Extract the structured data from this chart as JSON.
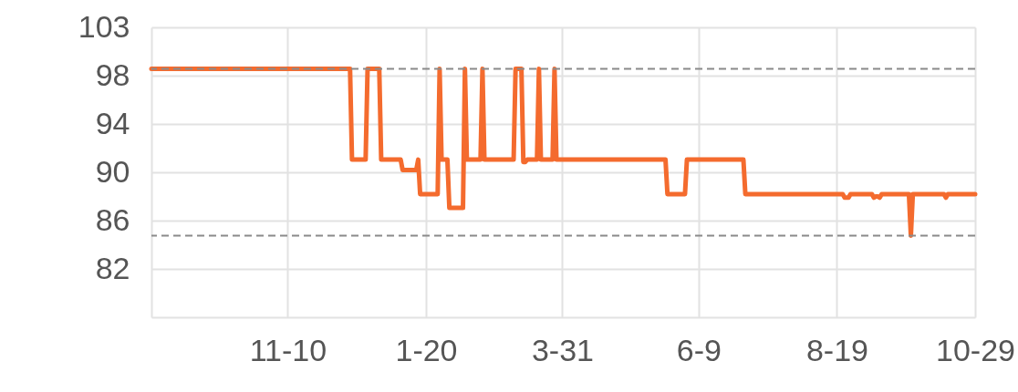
{
  "chart_data": {
    "type": "line",
    "categories": [
      null,
      null,
      null,
      null,
      null,
      null,
      null,
      null,
      null,
      null,
      null,
      null,
      null,
      null,
      null,
      null,
      null,
      null,
      null,
      null,
      null,
      null,
      null,
      null,
      null,
      null,
      null,
      null,
      null,
      null,
      null,
      null,
      null,
      null,
      null,
      null,
      null,
      null,
      null,
      null,
      null,
      null,
      null,
      null,
      null,
      null,
      null,
      null,
      null,
      null,
      null,
      null,
      null,
      null,
      null,
      null,
      null,
      null,
      null,
      null,
      null,
      null,
      null,
      null,
      null,
      null,
      null,
      null,
      null,
      null,
      "11-10",
      null,
      null,
      null,
      null,
      null,
      null,
      null,
      null,
      null,
      null,
      null,
      null,
      null,
      null,
      null,
      null,
      null,
      null,
      null,
      null,
      null,
      null,
      null,
      null,
      null,
      null,
      null,
      null,
      null,
      null,
      null,
      null,
      null,
      null,
      null,
      null,
      null,
      null,
      null,
      null,
      null,
      null,
      null,
      null,
      null,
      null,
      null,
      null,
      null,
      null,
      null,
      null,
      null,
      null,
      null,
      null,
      null,
      null,
      null,
      null,
      null,
      null,
      null,
      null,
      null,
      null,
      null,
      null,
      null,
      null,
      "1-20",
      null,
      null,
      null,
      null,
      null,
      null,
      null,
      null,
      null,
      null,
      null,
      null,
      null,
      null,
      null,
      null,
      null,
      null,
      null,
      null,
      null,
      null,
      null,
      null,
      null,
      null,
      null,
      null,
      null,
      null,
      null,
      null,
      null,
      null,
      null,
      null,
      null,
      null,
      null,
      null,
      null,
      null,
      null,
      null,
      null,
      null,
      null,
      null,
      null,
      null,
      null,
      null,
      null,
      null,
      null,
      null,
      null,
      null,
      null,
      null,
      null,
      null,
      null,
      null,
      null,
      null,
      null,
      null,
      null,
      "3-31",
      null,
      null,
      null,
      null,
      null,
      null,
      null,
      null,
      null,
      null,
      null,
      null,
      null,
      null,
      null,
      null,
      null,
      null,
      null,
      null,
      null,
      null,
      null,
      null,
      null,
      null,
      null,
      null,
      null,
      null,
      null,
      null,
      null,
      null,
      null,
      null,
      null,
      null,
      null,
      null,
      null,
      null,
      null,
      null,
      null,
      null,
      null,
      null,
      null,
      null,
      null,
      null,
      null,
      null,
      null,
      null,
      null,
      null,
      null,
      null,
      null,
      null,
      null,
      null,
      null,
      null,
      null,
      null,
      null,
      "6-9",
      null,
      null,
      null,
      null,
      null,
      null,
      null,
      null,
      null,
      null,
      null,
      null,
      null,
      null,
      null,
      null,
      null,
      null,
      null,
      null,
      null,
      null,
      null,
      null,
      null,
      null,
      null,
      null,
      null,
      null,
      null,
      null,
      null,
      null,
      null,
      null,
      null,
      null,
      null,
      null,
      null,
      null,
      null,
      null,
      null,
      null,
      null,
      null,
      null,
      null,
      null,
      null,
      null,
      null,
      null,
      null,
      null,
      null,
      null,
      null,
      null,
      null,
      null,
      null,
      null,
      null,
      null,
      null,
      null,
      null,
      "8-19",
      null,
      null,
      null,
      null,
      null,
      null,
      null,
      null,
      null,
      null,
      null,
      null,
      null,
      null,
      null,
      null,
      null,
      null,
      null,
      null,
      null,
      null,
      null,
      null,
      null,
      null,
      null,
      null,
      null,
      null,
      null,
      null,
      null,
      null,
      null,
      null,
      null,
      null,
      null,
      null,
      null,
      null,
      null,
      null,
      null,
      null,
      null,
      null,
      null,
      null,
      null,
      null,
      null,
      null,
      null,
      null,
      null,
      null,
      null,
      null,
      null,
      null,
      null,
      null,
      null,
      null,
      null,
      null,
      null,
      null,
      "10-29"
    ],
    "series": [
      {
        "color": "#f46b2e",
        "values": [
          99,
          99,
          99,
          99,
          99,
          99,
          99,
          99,
          99,
          99,
          99,
          99,
          99,
          99,
          99,
          99,
          99,
          99,
          99,
          99,
          99,
          99,
          99,
          99,
          99,
          99,
          99,
          99,
          99,
          99,
          99,
          99,
          99,
          99,
          99,
          99,
          99,
          99,
          99,
          99,
          99,
          99,
          99,
          99,
          99,
          99,
          99,
          99,
          99,
          99,
          99,
          99,
          99,
          99,
          99,
          99,
          99,
          99,
          99,
          99,
          99,
          99,
          99,
          99,
          99,
          99,
          99,
          99,
          99,
          99,
          99,
          99,
          99,
          99,
          99,
          99,
          99,
          99,
          99,
          99,
          99,
          99,
          99,
          99,
          99,
          99,
          99,
          99,
          99,
          99,
          99,
          99,
          99,
          99,
          99,
          99,
          99,
          99,
          99,
          99,
          99,
          99,
          99,
          91.1,
          91.1,
          91.1,
          91.1,
          91.1,
          91.1,
          91.1,
          91.1,
          99,
          99,
          99,
          99,
          99,
          99,
          99,
          91.1,
          91.1,
          91.1,
          91.1,
          91.1,
          91.1,
          91.1,
          91.1,
          91.1,
          91.1,
          91.1,
          90.2,
          90.2,
          90.2,
          90.2,
          90.2,
          90.2,
          90.2,
          90.2,
          91.1,
          88.1,
          88.1,
          88.1,
          88.1,
          88.1,
          88.1,
          88.1,
          88.1,
          88.1,
          88.1,
          99,
          91.1,
          91.1,
          91.1,
          91.1,
          86.9,
          86.9,
          86.9,
          86.9,
          86.9,
          86.9,
          86.9,
          86.9,
          99,
          91.1,
          91.1,
          91.1,
          91.1,
          91.1,
          91.1,
          91.1,
          91.1,
          99,
          91.1,
          91.1,
          91.1,
          91.1,
          91.1,
          91.1,
          91.1,
          91.1,
          91.1,
          91.1,
          91.1,
          91.1,
          91.1,
          91.1,
          91.1,
          91.1,
          99,
          99,
          99,
          99,
          90.9,
          90.9,
          91.1,
          91.1,
          91.1,
          91.1,
          91.1,
          91.1,
          99,
          91.1,
          91.1,
          91.1,
          91.1,
          91.1,
          91.1,
          91.1,
          99,
          91.1,
          91.1,
          91.1,
          91.1,
          91.1,
          91.1,
          91.1,
          91.1,
          91.1,
          91.1,
          91.1,
          91.1,
          91.1,
          91.1,
          91.1,
          91.1,
          91.1,
          91.1,
          91.1,
          91.1,
          91.1,
          91.1,
          91.1,
          91.1,
          91.1,
          91.1,
          91.1,
          91.1,
          91.1,
          91.1,
          91.1,
          91.1,
          91.1,
          91.1,
          91.1,
          91.1,
          91.1,
          91.1,
          91.1,
          91.1,
          91.1,
          91.1,
          91.1,
          91.1,
          91.1,
          91.1,
          91.1,
          91.1,
          91.1,
          91.1,
          91.1,
          91.1,
          91.1,
          91.1,
          91.1,
          91.1,
          91.1,
          88.1,
          88.1,
          88.1,
          88.1,
          88.1,
          88.1,
          88.1,
          88.1,
          88.1,
          88.1,
          91.1,
          91.1,
          91.1,
          91.1,
          91.1,
          91.1,
          91.1,
          91.1,
          91.1,
          91.1,
          91.1,
          91.1,
          91.1,
          91.1,
          91.1,
          91.1,
          91.1,
          91.1,
          91.1,
          91.1,
          91.1,
          91.1,
          91.1,
          91.1,
          91.1,
          91.1,
          91.1,
          91.1,
          91.1,
          91.1,
          88.1,
          88.1,
          88.1,
          88.1,
          88.1,
          88.1,
          88.1,
          88.1,
          88.1,
          88.1,
          88.1,
          88.1,
          88.1,
          88.1,
          88.1,
          88.1,
          88.1,
          88.1,
          88.1,
          88.1,
          88.1,
          88.1,
          88.1,
          88.1,
          88.1,
          88.1,
          88.1,
          88.1,
          88.1,
          88.1,
          88.1,
          88.1,
          88.1,
          88.1,
          88.1,
          88.1,
          88.1,
          88.1,
          88.1,
          88.1,
          88.1,
          88.1,
          88.1,
          88.1,
          88.1,
          88.1,
          88.1,
          88.1,
          88.1,
          88.1,
          88.1,
          87.8,
          87.8,
          87.8,
          88.1,
          88.1,
          88.1,
          88.1,
          88.1,
          88.1,
          88.1,
          88.1,
          88.1,
          88.1,
          88.1,
          88.1,
          87.8,
          87.9,
          87.9,
          87.8,
          88.1,
          88.1,
          88.1,
          88.1,
          88.1,
          88.1,
          88.1,
          88.1,
          88.1,
          88.1,
          88.1,
          88.1,
          88.1,
          88.1,
          88.1,
          84.5,
          88.1,
          88.1,
          88.1,
          88.1,
          88.1,
          88.1,
          88.1,
          88.1,
          88.1,
          88.1,
          88.1,
          88.1,
          88.1,
          88.1,
          88.1,
          88.1,
          88.1,
          87.8,
          88.1,
          88.1,
          88.1,
          88.1,
          88.1,
          88.1,
          88.1,
          88.1,
          88.1,
          88.1,
          88.1,
          88.1,
          88.1,
          88.1,
          88.1
        ]
      }
    ],
    "ylim": [
      77.4,
      102.6
    ],
    "yticks": [
      {
        "value": 81.6,
        "label": "82"
      },
      {
        "value": 85.8,
        "label": "86"
      },
      {
        "value": 90,
        "label": "90"
      },
      {
        "value": 94.2,
        "label": "94"
      },
      {
        "value": 98.4,
        "label": "98"
      },
      {
        "value": 102.6,
        "label": "103"
      }
    ],
    "grid": true,
    "marker": "none",
    "line_style": "solid",
    "ref_lines": [
      {
        "axis": "y",
        "value": 99,
        "color": "#8a8a8a",
        "line_style": "dashed"
      },
      {
        "axis": "y",
        "value": 84.5,
        "color": "#8a8a8a",
        "line_style": "dashed"
      }
    ]
  }
}
